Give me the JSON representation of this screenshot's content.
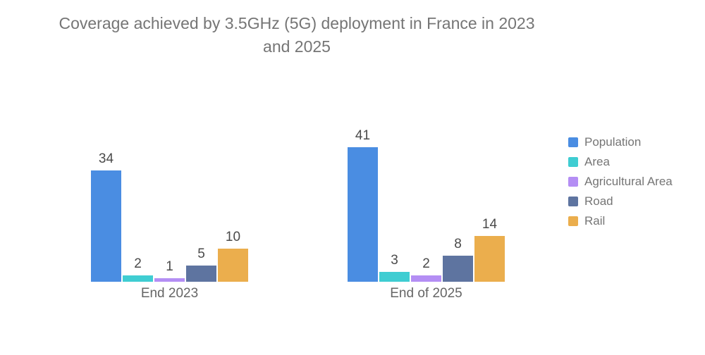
{
  "title": {
    "line1": "Coverage achieved by 3.5GHz (5G) deployment in France in 2023",
    "line2": "and 2025"
  },
  "chart_data": {
    "type": "bar",
    "title": "Coverage achieved by 3.5GHz (5G) deployment in France in 2023 and 2025",
    "categories": [
      "End 2023",
      "End of 2025"
    ],
    "series": [
      {
        "name": "Population",
        "color": "#4A8DE2",
        "values": [
          34,
          41
        ]
      },
      {
        "name": "Area",
        "color": "#3FCDD2",
        "values": [
          2,
          3
        ]
      },
      {
        "name": "Agricultural Area",
        "color": "#B48EF4",
        "values": [
          1,
          2
        ]
      },
      {
        "name": "Road",
        "color": "#5E74A0",
        "values": [
          5,
          8
        ]
      },
      {
        "name": "Rail",
        "color": "#EBAE4D",
        "values": [
          10,
          14
        ]
      }
    ],
    "value_labels_shown": true,
    "legend_position": "right",
    "axis_ranges": {
      "ylim": [
        0,
        45
      ]
    },
    "gridlines": false,
    "axis_lines_visible": false
  },
  "style": {
    "background": "#FFFFFF",
    "title_color": "#757575",
    "value_label_color": "#4A4A4A",
    "axis_label_color": "#666666",
    "legend_text_color": "#757575"
  }
}
